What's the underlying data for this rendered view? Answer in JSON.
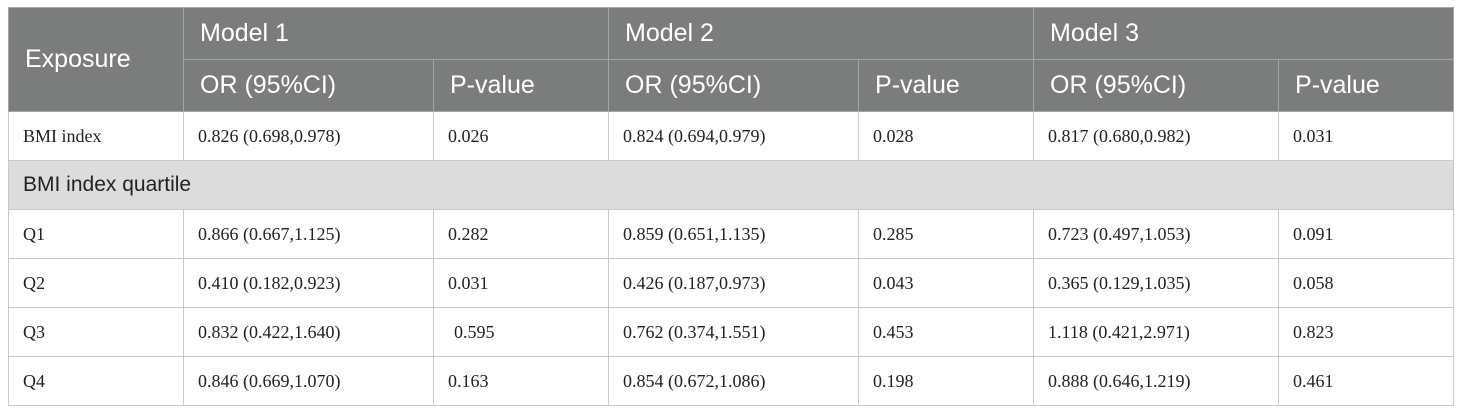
{
  "header": {
    "exposure": "Exposure",
    "models": [
      "Model 1",
      "Model 2",
      "Model 3"
    ],
    "or_label": "OR (95%CI)",
    "p_label": "P-value"
  },
  "rows": [
    {
      "label": "BMI index",
      "cells": [
        "0.826 (0.698,0.978)",
        "0.026",
        "0.824 (0.694,0.979)",
        "0.028",
        "0.817 (0.680,0.982)",
        "0.031"
      ]
    }
  ],
  "section": {
    "label": "BMI index quartile"
  },
  "quartiles": [
    {
      "label": "Q1",
      "cells": [
        "0.866 (0.667,1.125)",
        "0.282",
        "0.859 (0.651,1.135)",
        "0.285",
        "0.723 (0.497,1.053)",
        "0.091"
      ]
    },
    {
      "label": "Q2",
      "cells": [
        "0.410 (0.182,0.923)",
        "0.031",
        "0.426 (0.187,0.973)",
        "0.043",
        "0.365 (0.129,1.035)",
        "0.058"
      ]
    },
    {
      "label": "Q3",
      "cells": [
        "0.832 (0.422,1.640)",
        "0.595",
        "0.762 (0.374,1.551)",
        "0.453",
        "1.118 (0.421,2.971)",
        "0.823"
      ]
    },
    {
      "label": "Q4",
      "cells": [
        "0.846 (0.669,1.070)",
        "0.163",
        "0.854 (0.672,1.086)",
        "0.198",
        "0.888 (0.646,1.219)",
        "0.461"
      ]
    }
  ]
}
